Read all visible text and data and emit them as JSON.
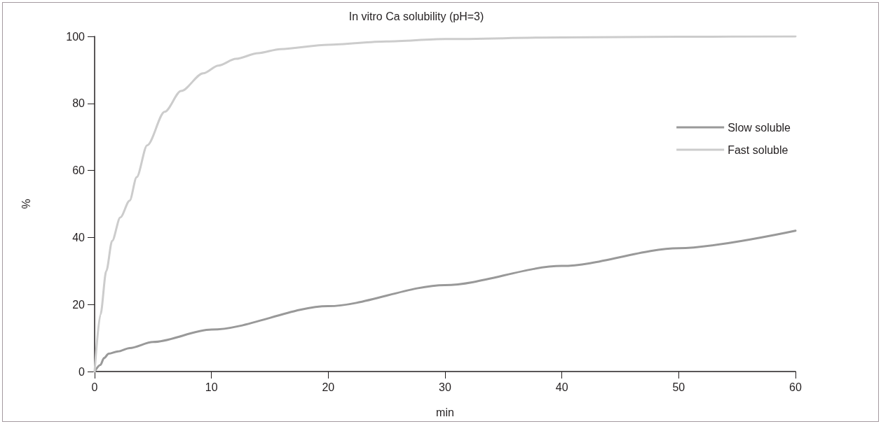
{
  "chart_data": {
    "type": "line",
    "title": "In vitro Ca solubility (pH=3)",
    "xlabel": "min",
    "ylabel": "%",
    "xlim": [
      0,
      60
    ],
    "xticks": [
      0,
      10,
      20,
      30,
      40,
      50,
      60
    ],
    "ylim": [
      0,
      100
    ],
    "yticks": [
      0,
      20,
      40,
      60,
      80,
      100
    ],
    "grid": false,
    "legend": "top right",
    "marker": "none",
    "line_style": "solid",
    "series": [
      {
        "name": "Slow soluble",
        "color": "#999999",
        "x": [
          0,
          0.5,
          0.8,
          1.2,
          2,
          3,
          5,
          10,
          20,
          30,
          40,
          50,
          60
        ],
        "values": [
          0,
          2,
          4,
          5.3,
          6,
          7,
          8.8,
          12.5,
          19.5,
          25.8,
          31.5,
          36.8,
          42
        ]
      },
      {
        "name": "Fast soluble",
        "color": "#cccccc",
        "x": [
          0,
          0.5,
          1,
          1.5,
          2.2,
          3,
          3.6,
          4.5,
          6,
          7.4,
          9.3,
          10.6,
          12.1,
          14,
          15.9,
          20,
          25,
          30,
          40,
          50,
          60
        ],
        "values": [
          0,
          17,
          30,
          39,
          46,
          51,
          58,
          67.5,
          77.5,
          83.7,
          89,
          91.3,
          93.3,
          95,
          96.2,
          97.5,
          98.5,
          99.2,
          99.7,
          99.9,
          100
        ]
      }
    ]
  }
}
